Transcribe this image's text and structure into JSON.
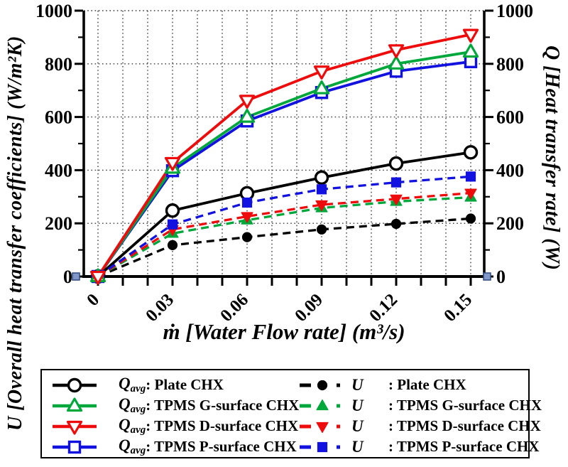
{
  "figure": {
    "background": "#ffffff",
    "grid_color": "#3c3c3c",
    "selection_handles": {
      "color": "#8197C9",
      "border": "#2F4A7E"
    }
  },
  "axes": {
    "x": {
      "title": "ṁ [Water Flow rate] (m³/s)",
      "tick_values": [
        0,
        0.03,
        0.06,
        0.09,
        0.12,
        0.15
      ],
      "tick_labels": [
        "0",
        "0.03",
        "0.06",
        "0.09",
        "0.12",
        "0.15"
      ],
      "minor_step": 0.01,
      "range": [
        0,
        0.15
      ]
    },
    "y_left": {
      "title": "U [Overall heat transfer coefficients] (W/m²K)",
      "tick_values": [
        0,
        200,
        400,
        600,
        800,
        1000
      ],
      "tick_labels": [
        "0",
        "200",
        "400",
        "600",
        "800",
        "1000"
      ],
      "minor_step": 100,
      "range": [
        0,
        1000
      ]
    },
    "y_right": {
      "title": "Q [Heat transfer rate] (W)",
      "tick_values": [
        0,
        200,
        400,
        600,
        800,
        1000
      ],
      "tick_labels": [
        "0",
        "200",
        "400",
        "600",
        "800",
        "1000"
      ],
      "minor_step": 100,
      "range": [
        0,
        1000
      ]
    }
  },
  "chart_data": {
    "type": "line",
    "title": "",
    "grid": "dotted",
    "legend_position": "bottom",
    "x": [
      0,
      0.03,
      0.06,
      0.09,
      0.12,
      0.15
    ],
    "series": [
      {
        "id": "q-plate",
        "name": "Qavg: Plate CHX",
        "color": "#000000",
        "marker": "circle",
        "marker_fill": "open",
        "line_style": "solid",
        "legend_col": 1,
        "legend_sym": "Q",
        "legend_sub": "avg",
        "legend_label": ": Plate CHX",
        "values": [
          0,
          248,
          313,
          372,
          425,
          467
        ]
      },
      {
        "id": "q-g",
        "name": "Qavg: TPMS G-surface CHX",
        "color": "#00A83C",
        "marker": "triangle-up",
        "marker_fill": "open",
        "line_style": "solid",
        "legend_col": 1,
        "legend_sym": "Q",
        "legend_sub": "avg",
        "legend_label": ": TPMS G-surface CHX",
        "values": [
          0,
          408,
          600,
          707,
          800,
          845
        ]
      },
      {
        "id": "q-d",
        "name": "Qavg: TPMS D-surface CHX",
        "color": "#EE0B0B",
        "marker": "triangle-down",
        "marker_fill": "open",
        "line_style": "solid",
        "legend_col": 1,
        "legend_sym": "Q",
        "legend_sub": "avg",
        "legend_label": ": TPMS D-surface CHX",
        "values": [
          0,
          428,
          662,
          772,
          852,
          910
        ]
      },
      {
        "id": "q-p",
        "name": "Qavg: TPMS P-surface CHX",
        "color": "#1212E0",
        "marker": "square",
        "marker_fill": "open",
        "line_style": "solid",
        "legend_col": 1,
        "legend_sym": "Q",
        "legend_sub": "avg",
        "legend_label": ": TPMS P-surface CHX",
        "values": [
          0,
          398,
          585,
          692,
          772,
          808
        ]
      },
      {
        "id": "u-plate",
        "name": "U: Plate CHX",
        "color": "#000000",
        "marker": "circle",
        "marker_fill": "filled",
        "line_style": "dashed",
        "legend_col": 2,
        "legend_sym": "U",
        "legend_sub": "",
        "legend_label": ": Plate CHX",
        "values": [
          0,
          118,
          148,
          177,
          198,
          218
        ]
      },
      {
        "id": "u-g",
        "name": "U: TPMS G-surface CHX",
        "color": "#00A83C",
        "marker": "triangle-up",
        "marker_fill": "filled",
        "line_style": "dashed",
        "legend_col": 2,
        "legend_sym": "U",
        "legend_sub": "",
        "legend_label": ": TPMS G-surface CHX",
        "values": [
          0,
          162,
          212,
          258,
          282,
          298
        ]
      },
      {
        "id": "u-d",
        "name": "U: TPMS D-surface CHX",
        "color": "#EE0B0B",
        "marker": "triangle-down",
        "marker_fill": "filled",
        "line_style": "dashed",
        "legend_col": 2,
        "legend_sym": "U",
        "legend_sub": "",
        "legend_label": ": TPMS D-surface CHX",
        "values": [
          0,
          177,
          226,
          270,
          292,
          314
        ]
      },
      {
        "id": "u-p",
        "name": "U: TPMS P-surface CHX",
        "color": "#1212E0",
        "marker": "square",
        "marker_fill": "filled",
        "line_style": "dashed",
        "legend_col": 2,
        "legend_sym": "U",
        "legend_sub": "",
        "legend_label": ": TPMS P-surface CHX",
        "values": [
          0,
          196,
          278,
          328,
          354,
          376
        ]
      }
    ]
  }
}
